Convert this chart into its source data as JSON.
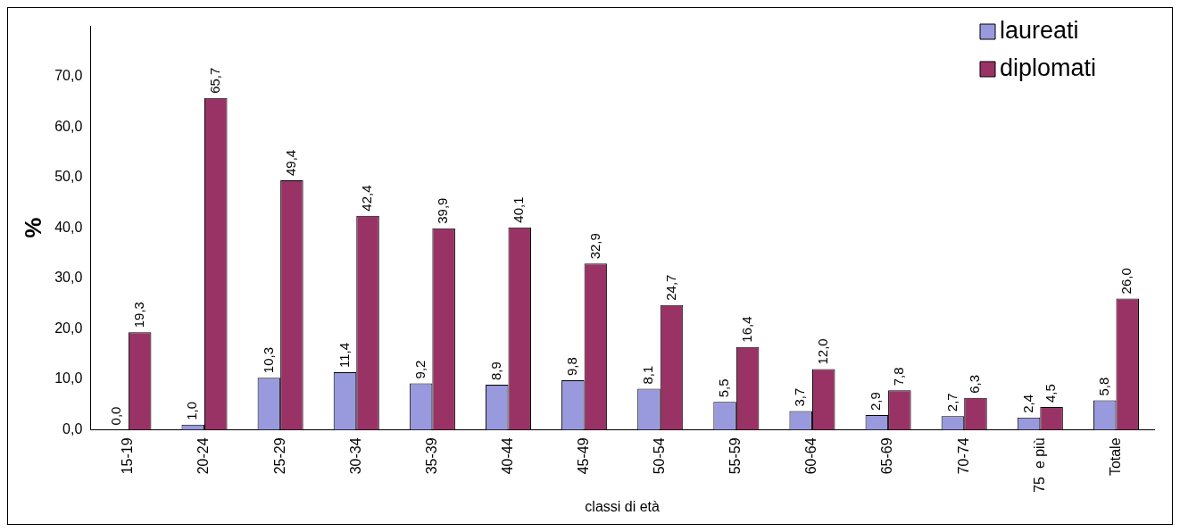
{
  "chart_data": {
    "type": "bar",
    "xlabel": "classi di età",
    "ylabel": "%",
    "categories": [
      "15-19",
      "20-24",
      "25-29",
      "30-34",
      "35-39",
      "40-44",
      "45-49",
      "50-54",
      "55-59",
      "60-64",
      "65-69",
      "70-74",
      "75  e più",
      "Totale"
    ],
    "series": [
      {
        "name": "laureati",
        "color": "#9999dd",
        "values": [
          0.0,
          1.0,
          10.3,
          11.4,
          9.2,
          8.9,
          9.8,
          8.1,
          5.5,
          3.7,
          2.9,
          2.7,
          2.4,
          5.8
        ],
        "value_labels": [
          "0,0",
          "1,0",
          "10,3",
          "11,4",
          "9,2",
          "8,9",
          "9,8",
          "8,1",
          "5,5",
          "3,7",
          "2,9",
          "2,7",
          "2,4",
          "5,8"
        ]
      },
      {
        "name": "diplomati",
        "color": "#993366",
        "values": [
          19.3,
          65.7,
          49.4,
          42.4,
          39.9,
          40.1,
          32.9,
          24.7,
          16.4,
          12.0,
          7.8,
          6.3,
          4.5,
          26.0
        ],
        "value_labels": [
          "19,3",
          "65,7",
          "49,4",
          "42,4",
          "39,9",
          "40,1",
          "32,9",
          "24,7",
          "16,4",
          "12,0",
          "7,8",
          "6,3",
          "4,5",
          "26,0"
        ]
      }
    ],
    "ylim": [
      0,
      80
    ],
    "yticks": [
      {
        "value": 0,
        "label": "0,0"
      },
      {
        "value": 10,
        "label": "10,0"
      },
      {
        "value": 20,
        "label": "20,0"
      },
      {
        "value": 30,
        "label": "30,0"
      },
      {
        "value": 40,
        "label": "40,0"
      },
      {
        "value": 50,
        "label": "50,0"
      },
      {
        "value": 60,
        "label": "60,0"
      },
      {
        "value": 70,
        "label": "70,0"
      }
    ],
    "grid": false,
    "legend": "top right"
  }
}
